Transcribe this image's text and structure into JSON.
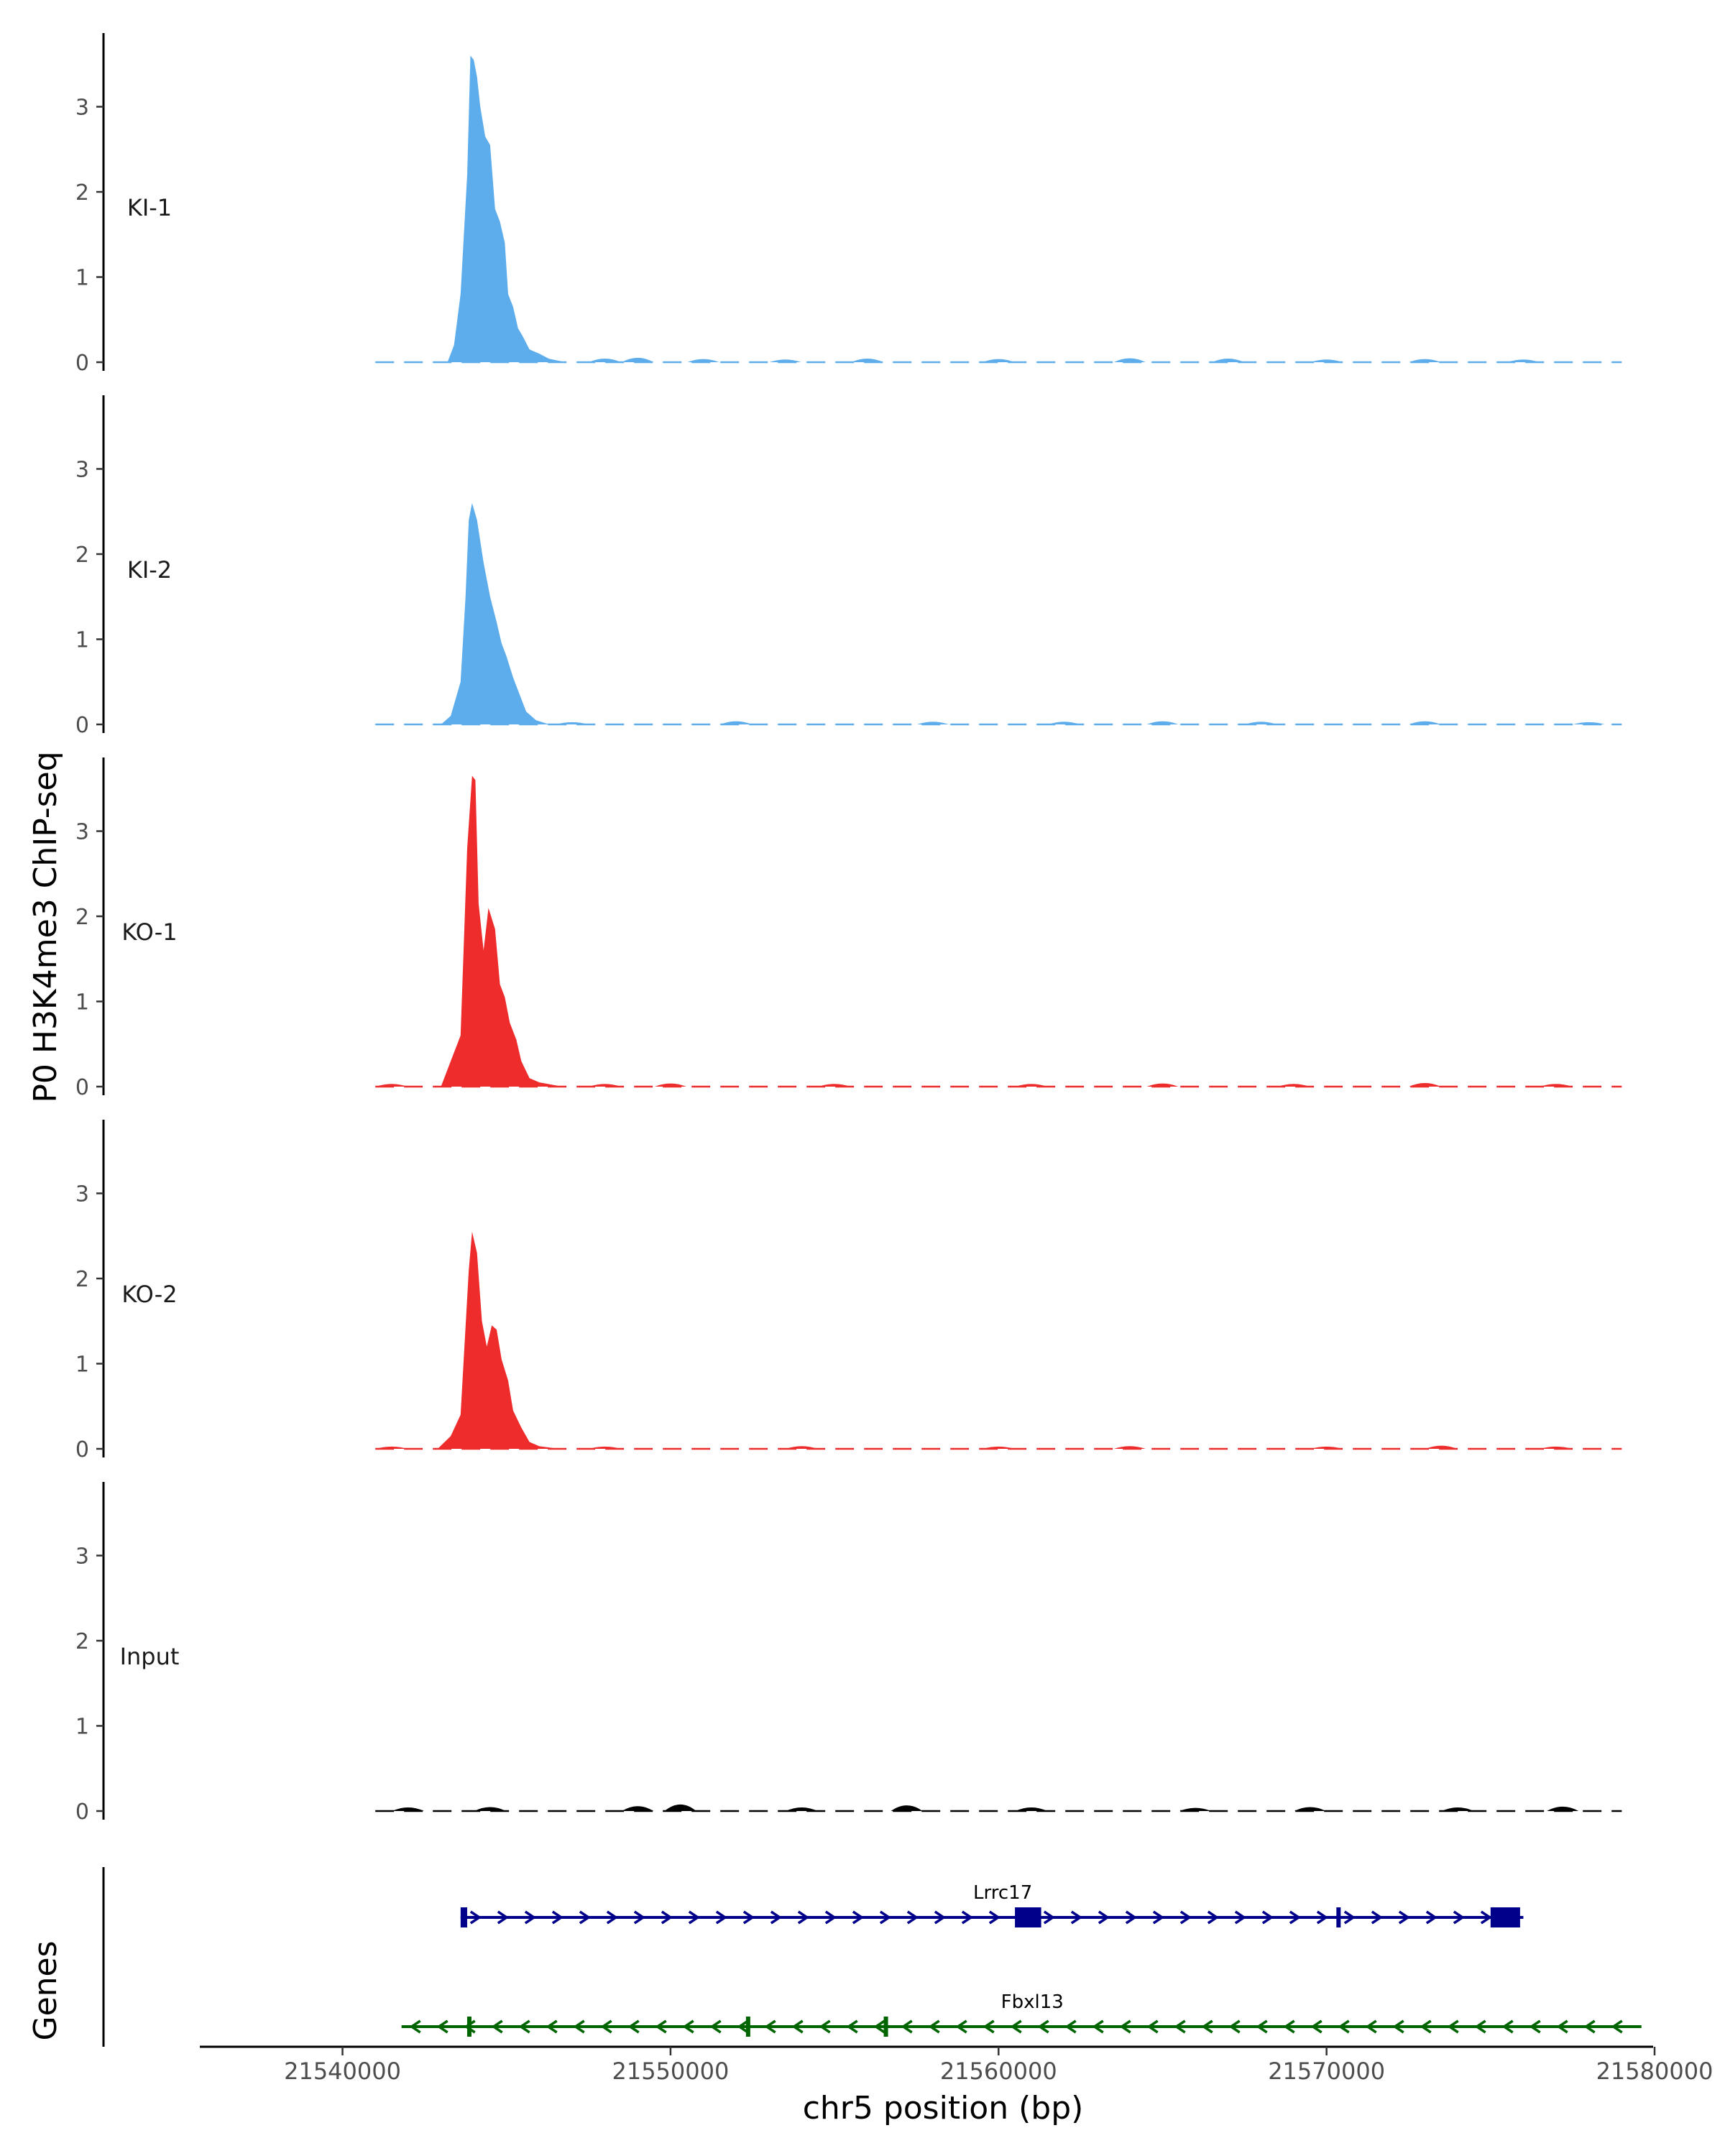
{
  "chart_data": {
    "type": "area",
    "ylabel": "P0 H3K4me3 ChIP-seq",
    "xlabel": "chr5 position (bp)",
    "genes_label": "Genes",
    "xlim": [
      21536000,
      21580000
    ],
    "ylim": [
      0,
      3.8
    ],
    "y_ticks": [
      "0",
      "1",
      "2",
      "3"
    ],
    "x_ticks": [
      {
        "value": 21540000,
        "label": "21540000"
      },
      {
        "value": 21550000,
        "label": "21550000"
      },
      {
        "value": 21560000,
        "label": "21560000"
      },
      {
        "value": 21570000,
        "label": "21570000"
      },
      {
        "value": 21580000,
        "label": "21580000"
      }
    ],
    "colors": {
      "KI": "#5DADEC",
      "KO": "#EE2C2C",
      "Input": "#000000",
      "Lrrc17": "#00008B",
      "Fbxl13": "#006400"
    },
    "tracks": [
      {
        "name": "KI-1",
        "color": "#5DADEC",
        "peak": [
          [
            21543200,
            0
          ],
          [
            21543400,
            0.2
          ],
          [
            21543600,
            0.8
          ],
          [
            21543800,
            2.2
          ],
          [
            21543900,
            3.6
          ],
          [
            21544000,
            3.55
          ],
          [
            21544100,
            3.35
          ],
          [
            21544200,
            3.0
          ],
          [
            21544350,
            2.65
          ],
          [
            21544500,
            2.55
          ],
          [
            21544650,
            1.8
          ],
          [
            21544800,
            1.65
          ],
          [
            21544950,
            1.4
          ],
          [
            21545050,
            0.8
          ],
          [
            21545200,
            0.65
          ],
          [
            21545350,
            0.4
          ],
          [
            21545500,
            0.3
          ],
          [
            21545700,
            0.15
          ],
          [
            21546000,
            0.1
          ],
          [
            21546300,
            0.04
          ],
          [
            21546800,
            0
          ]
        ],
        "noise": [
          [
            21548000,
            0.05
          ],
          [
            21549000,
            0.07
          ],
          [
            21551000,
            0.04
          ],
          [
            21553500,
            0.03
          ],
          [
            21556000,
            0.05
          ],
          [
            21560000,
            0.04
          ],
          [
            21564000,
            0.06
          ],
          [
            21567000,
            0.05
          ],
          [
            21570000,
            0.03
          ],
          [
            21573000,
            0.04
          ],
          [
            21576000,
            0.03
          ]
        ]
      },
      {
        "name": "KI-2",
        "color": "#5DADEC",
        "peak": [
          [
            21543000,
            0
          ],
          [
            21543300,
            0.1
          ],
          [
            21543600,
            0.5
          ],
          [
            21543750,
            1.5
          ],
          [
            21543850,
            2.4
          ],
          [
            21543950,
            2.6
          ],
          [
            21544100,
            2.4
          ],
          [
            21544300,
            1.9
          ],
          [
            21544500,
            1.5
          ],
          [
            21544700,
            1.2
          ],
          [
            21544850,
            0.95
          ],
          [
            21545000,
            0.8
          ],
          [
            21545200,
            0.55
          ],
          [
            21545400,
            0.35
          ],
          [
            21545600,
            0.15
          ],
          [
            21545900,
            0.05
          ],
          [
            21546300,
            0
          ]
        ],
        "noise": [
          [
            21547000,
            0.02
          ],
          [
            21552000,
            0.04
          ],
          [
            21558000,
            0.03
          ],
          [
            21562000,
            0.03
          ],
          [
            21565000,
            0.04
          ],
          [
            21568000,
            0.03
          ],
          [
            21573000,
            0.04
          ],
          [
            21578000,
            0.02
          ]
        ]
      },
      {
        "name": "KO-1",
        "color": "#EE2C2C",
        "peak": [
          [
            21543000,
            0
          ],
          [
            21543300,
            0.3
          ],
          [
            21543600,
            0.6
          ],
          [
            21543800,
            2.8
          ],
          [
            21543950,
            3.65
          ],
          [
            21544050,
            3.6
          ],
          [
            21544150,
            2.15
          ],
          [
            21544300,
            1.6
          ],
          [
            21544450,
            2.1
          ],
          [
            21544650,
            1.85
          ],
          [
            21544800,
            1.2
          ],
          [
            21544950,
            1.05
          ],
          [
            21545100,
            0.75
          ],
          [
            21545300,
            0.55
          ],
          [
            21545450,
            0.3
          ],
          [
            21545700,
            0.1
          ],
          [
            21546000,
            0.05
          ],
          [
            21546700,
            0
          ]
        ],
        "noise": [
          [
            21541500,
            0.03
          ],
          [
            21548000,
            0.03
          ],
          [
            21550000,
            0.04
          ],
          [
            21555000,
            0.03
          ],
          [
            21561000,
            0.03
          ],
          [
            21565000,
            0.04
          ],
          [
            21569000,
            0.03
          ],
          [
            21573000,
            0.05
          ],
          [
            21577000,
            0.03
          ]
        ]
      },
      {
        "name": "KO-2",
        "color": "#EE2C2C",
        "peak": [
          [
            21542900,
            0
          ],
          [
            21543300,
            0.15
          ],
          [
            21543600,
            0.4
          ],
          [
            21543850,
            2.1
          ],
          [
            21543950,
            2.55
          ],
          [
            21544100,
            2.3
          ],
          [
            21544250,
            1.5
          ],
          [
            21544400,
            1.2
          ],
          [
            21544550,
            1.45
          ],
          [
            21544700,
            1.4
          ],
          [
            21544850,
            1.05
          ],
          [
            21545050,
            0.8
          ],
          [
            21545200,
            0.45
          ],
          [
            21545450,
            0.25
          ],
          [
            21545700,
            0.08
          ],
          [
            21546000,
            0.03
          ],
          [
            21546600,
            0
          ]
        ],
        "noise": [
          [
            21541500,
            0.02
          ],
          [
            21548000,
            0.02
          ],
          [
            21554000,
            0.03
          ],
          [
            21560000,
            0.02
          ],
          [
            21564000,
            0.03
          ],
          [
            21570000,
            0.02
          ],
          [
            21573500,
            0.04
          ],
          [
            21577000,
            0.02
          ]
        ]
      },
      {
        "name": "Input",
        "color": "#000000",
        "peak": [],
        "noise": [
          [
            21542000,
            0.05
          ],
          [
            21544500,
            0.06
          ],
          [
            21549000,
            0.08
          ],
          [
            21550300,
            0.12
          ],
          [
            21554000,
            0.05
          ],
          [
            21557200,
            0.1
          ],
          [
            21561000,
            0.05
          ],
          [
            21566000,
            0.04
          ],
          [
            21569500,
            0.06
          ],
          [
            21574000,
            0.05
          ],
          [
            21577200,
            0.07
          ]
        ]
      }
    ],
    "genes": [
      {
        "name": "Lrrc17",
        "strand": "+",
        "color": "#00008B",
        "start": 21543600,
        "end": 21576000,
        "exons": [
          [
            21543600,
            21543800
          ],
          [
            21560500,
            21561300
          ],
          [
            21570300,
            21570400
          ],
          [
            21575000,
            21575900
          ]
        ]
      },
      {
        "name": "Fbxl13",
        "strand": "-",
        "color": "#006400",
        "start": 21541800,
        "end": 21579600,
        "exons": [
          [
            21543800,
            21543900
          ],
          [
            21552300,
            21552400
          ],
          [
            21556500,
            21556550
          ]
        ]
      }
    ]
  }
}
